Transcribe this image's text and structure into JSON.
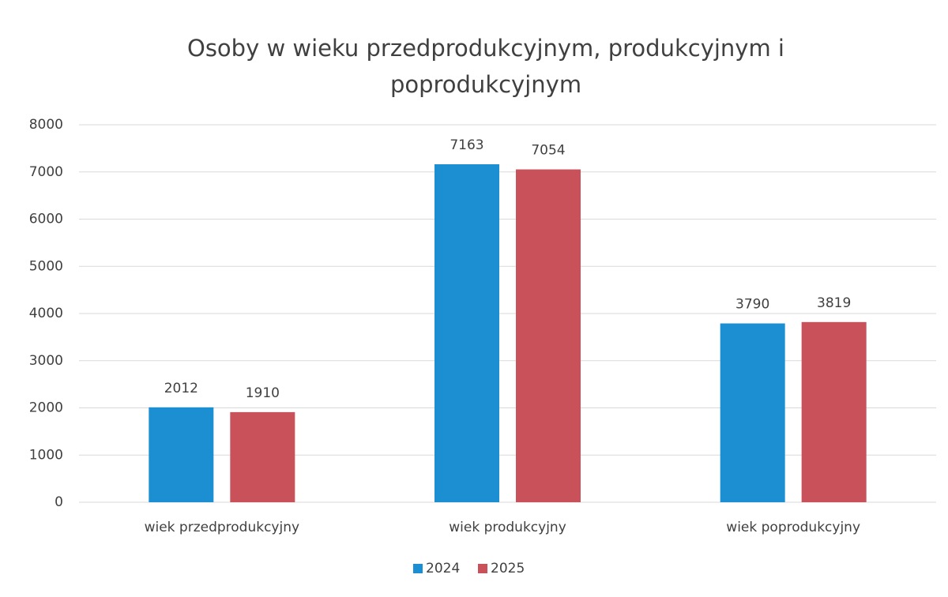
{
  "chart_data": {
    "type": "bar",
    "title": "Osoby w wieku przedprodukcyjnym, produkcyjnym i poprodukcyjnym",
    "categories": [
      "wiek przedprodukcyjny",
      "wiek produkcyjny",
      "wiek poprodukcyjny"
    ],
    "series": [
      {
        "name": "2024",
        "color": "#1b8fd2",
        "values": [
          2012,
          7163,
          3790
        ]
      },
      {
        "name": "2025",
        "color": "#c8515a",
        "values": [
          1910,
          7054,
          3819
        ]
      }
    ],
    "ylim": [
      0,
      8000
    ],
    "yticks": [
      0,
      1000,
      2000,
      3000,
      4000,
      5000,
      6000,
      7000,
      8000
    ],
    "grid": true,
    "legend": "bottom"
  }
}
